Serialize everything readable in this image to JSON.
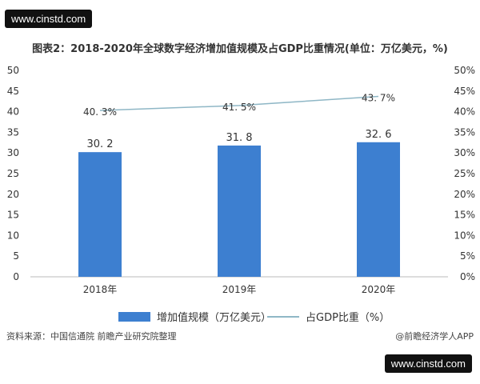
{
  "watermark": "www.cinstd.com",
  "chart_data": {
    "type": "bar",
    "title": "图表2：2018-2020年全球数字经济增加值规模及占GDP比重情况(单位：万亿美元，%)",
    "categories": [
      "2018年",
      "2019年",
      "2020年"
    ],
    "series": [
      {
        "name": "增加值规模（万亿美元）",
        "type": "bar",
        "axis": "left",
        "values": [
          30.2,
          31.8,
          32.6
        ],
        "labels": [
          "30. 2",
          "31. 8",
          "32. 6"
        ]
      },
      {
        "name": "占GDP比重（%）",
        "type": "line",
        "axis": "right",
        "values": [
          40.3,
          41.5,
          43.7
        ],
        "labels": [
          "40. 3%",
          "41. 5%",
          "43. 7%"
        ]
      }
    ],
    "left_axis": {
      "ylim": [
        0,
        50
      ],
      "ticks": [
        "0",
        "5",
        "10",
        "15",
        "20",
        "25",
        "30",
        "35",
        "40",
        "45",
        "50"
      ]
    },
    "right_axis": {
      "ylim": [
        0,
        50
      ],
      "ticks": [
        "0%",
        "5%",
        "10%",
        "15%",
        "20%",
        "25%",
        "30%",
        "35%",
        "40%",
        "45%",
        "50%"
      ]
    },
    "grid": false,
    "legend_position": "bottom",
    "colors": {
      "bar": "#3d7fd0",
      "line": "#8fb7c6"
    }
  },
  "footer": {
    "source": "资料来源：中国信通院 前瞻产业研究院整理",
    "credit": "@前瞻经济学人APP"
  }
}
